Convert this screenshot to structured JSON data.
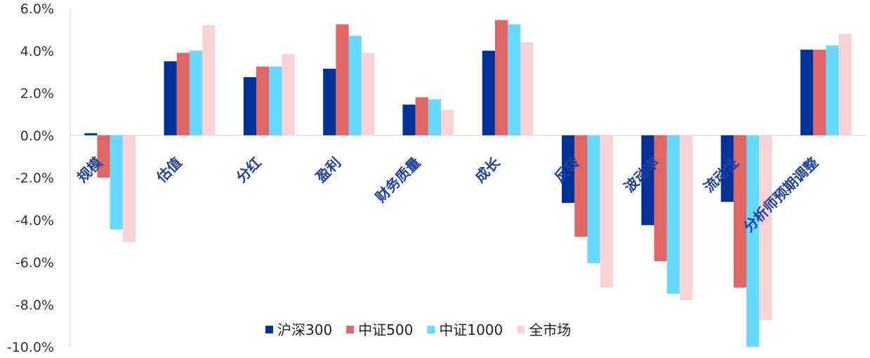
{
  "chart_data": {
    "type": "bar",
    "categories": [
      "规模",
      "估值",
      "分红",
      "盈利",
      "财务质量",
      "成长",
      "反转",
      "波动率",
      "流动性",
      "分析师预期调整"
    ],
    "series": [
      {
        "name": "沪深300",
        "color": "#003399",
        "values": [
          0.1,
          3.5,
          2.75,
          3.15,
          1.45,
          4.0,
          -3.2,
          -4.25,
          -3.15,
          4.05
        ]
      },
      {
        "name": "中证500",
        "color": "#E06666",
        "values": [
          -2.0,
          3.9,
          3.25,
          5.25,
          1.8,
          5.45,
          -4.8,
          -5.95,
          -7.2,
          4.05
        ]
      },
      {
        "name": "中证1000",
        "color": "#66D9FF",
        "values": [
          -4.45,
          4.0,
          3.25,
          4.7,
          1.7,
          5.25,
          -6.05,
          -7.5,
          -10.0,
          4.25
        ]
      },
      {
        "name": "全市场",
        "color": "#F8D3D6",
        "values": [
          -5.05,
          5.2,
          3.85,
          3.9,
          1.2,
          4.4,
          -7.2,
          -7.8,
          -8.75,
          4.8
        ]
      }
    ],
    "yticks": [
      "6.0%",
      "4.0%",
      "2.0%",
      "0.0%",
      "-2.0%",
      "-4.0%",
      "-6.0%",
      "-8.0%",
      "-10.0%"
    ],
    "ylim": [
      -10,
      6
    ],
    "unit": "%",
    "legend_position": "bottom-center",
    "grid": false
  }
}
